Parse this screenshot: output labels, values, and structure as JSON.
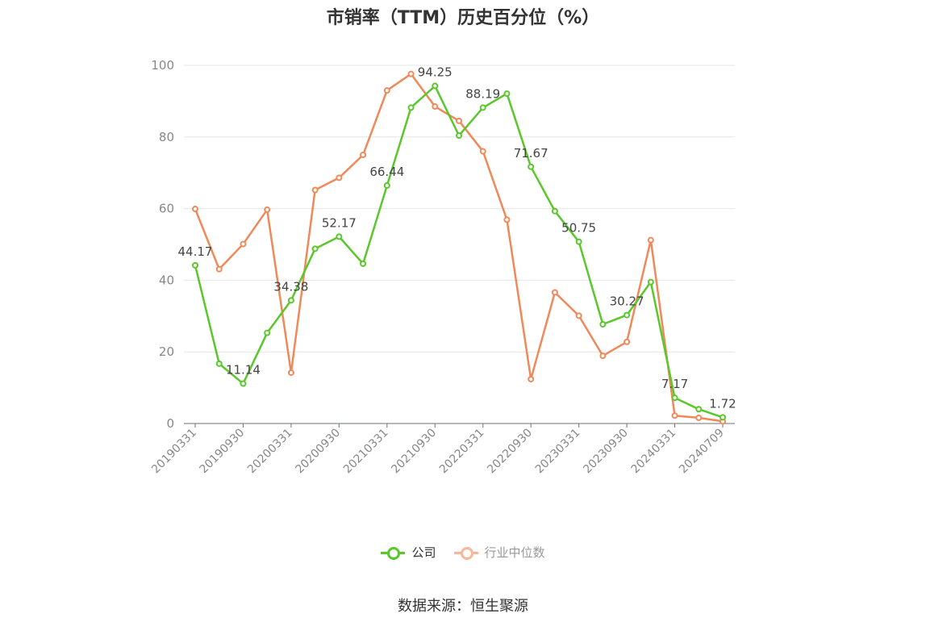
{
  "title": "市销率（TTM）历史百分位（%）",
  "source": "数据来源：恒生聚源",
  "colors": {
    "company": "#5ac72a",
    "industry": "#f0895a",
    "industry_legend": "#f7b89a",
    "grid": "#e6e6e6",
    "axis_text": "#888888",
    "label_text": "#444444"
  },
  "chart_data": {
    "type": "line",
    "title": "市销率（TTM）历史百分位（%）",
    "ylim": [
      0,
      100
    ],
    "yticks": [
      0,
      20,
      40,
      60,
      80,
      100
    ],
    "grid": true,
    "legend_position": "bottom",
    "x": [
      "20190331",
      "20190630",
      "20190930",
      "20191231",
      "20200331",
      "20200630",
      "20200930",
      "20201231",
      "20210331",
      "20210630",
      "20210930",
      "20211231",
      "20220331",
      "20220630",
      "20220930",
      "20221231",
      "20230331",
      "20230630",
      "20230930",
      "20231231",
      "20240331",
      "20240630",
      "20240709"
    ],
    "xtick_labels": [
      "20190331",
      "20190930",
      "20200331",
      "20200930",
      "20210331",
      "20210930",
      "20220331",
      "20220930",
      "20230331",
      "20230930",
      "20240331",
      "20240709"
    ],
    "series": [
      {
        "name": "公司",
        "values": [
          44.17,
          16.7,
          11.14,
          25.3,
          34.38,
          48.8,
          52.17,
          44.6,
          66.44,
          88.2,
          94.25,
          80.4,
          88.19,
          92.1,
          71.67,
          59.3,
          50.75,
          27.7,
          30.27,
          39.5,
          7.17,
          4.0,
          1.72
        ],
        "labels": {
          "0": "44.17",
          "2": "11.14",
          "4": "34.38",
          "6": "52.17",
          "8": "66.44",
          "10": "94.25",
          "12": "88.19",
          "14": "71.67",
          "16": "50.75",
          "18": "30.27",
          "20": "7.17",
          "22": "1.72"
        }
      },
      {
        "name": "行业中位数",
        "values": [
          59.9,
          43.1,
          50.1,
          59.7,
          14.2,
          65.2,
          68.6,
          75.0,
          93.0,
          97.6,
          88.5,
          84.5,
          76.0,
          56.9,
          12.4,
          36.6,
          30.1,
          18.9,
          22.8,
          51.2,
          2.2,
          1.6,
          0.6
        ]
      }
    ]
  }
}
